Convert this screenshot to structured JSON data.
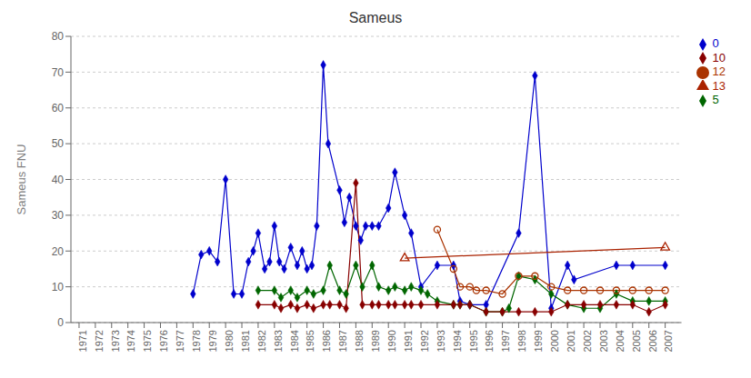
{
  "chart_data": {
    "type": "line",
    "title": "Sameus",
    "ylabel": "Sameus FNU",
    "xlim": [
      1970.5,
      2008.0
    ],
    "xticks": [
      1971,
      1972,
      1973,
      1974,
      1975,
      1976,
      1977,
      1978,
      1979,
      1980,
      1981,
      1982,
      1983,
      1984,
      1985,
      1986,
      1987,
      1988,
      1989,
      1990,
      1991,
      1992,
      1993,
      1994,
      1995,
      1996,
      1997,
      1998,
      1999,
      2000,
      2001,
      2002,
      2003,
      2004,
      2005,
      2006,
      2007
    ],
    "ylim": [
      0,
      80
    ],
    "yticks": [
      0,
      10,
      20,
      30,
      40,
      50,
      60,
      70,
      80
    ],
    "grid": "y",
    "legend": "right",
    "series": [
      {
        "name": "0",
        "color": "#0000cc",
        "marker": "diamond",
        "x": [
          1978,
          1978.5,
          1979,
          1979.5,
          1980,
          1980.5,
          1981,
          1981.4,
          1981.7,
          1982,
          1982.4,
          1982.7,
          1983,
          1983.3,
          1983.6,
          1984,
          1984.4,
          1984.7,
          1985,
          1985.3,
          1985.6,
          1986,
          1986.3,
          1987,
          1987.3,
          1987.6,
          1988,
          1988.3,
          1988.6,
          1989,
          1989.4,
          1990,
          1990.4,
          1991,
          1991.4,
          1992,
          1993,
          1994,
          1994.4,
          1995,
          1996,
          1998,
          1999,
          2000,
          2001,
          2001.4,
          2004,
          2005,
          2007
        ],
        "values": [
          8,
          19,
          20,
          17,
          40,
          8,
          8,
          17,
          20,
          25,
          15,
          17,
          27,
          17,
          15,
          21,
          16,
          20,
          15,
          16,
          27,
          72,
          50,
          37,
          28,
          35,
          27,
          23,
          27,
          27,
          27,
          32,
          42,
          30,
          25,
          10,
          16,
          16,
          6,
          5,
          5,
          25,
          69,
          4,
          16,
          12,
          16,
          16,
          16
        ]
      },
      {
        "name": "5",
        "color": "#006600",
        "marker": "diamond",
        "x": [
          1982,
          1983,
          1983.4,
          1984,
          1984.4,
          1985,
          1985.4,
          1986,
          1986.4,
          1987,
          1987.4,
          1988,
          1988.4,
          1989,
          1989.4,
          1990,
          1990.4,
          1991,
          1991.4,
          1992,
          1992.4,
          1993,
          1994,
          1994.4,
          1995,
          1996,
          1997,
          1997.4,
          1998,
          1999,
          2000,
          2001,
          2002,
          2003,
          2004,
          2005,
          2006,
          2007
        ],
        "values": [
          9,
          9,
          7,
          9,
          7,
          9,
          8,
          9,
          16,
          9,
          8,
          16,
          10,
          16,
          10,
          9,
          10,
          9,
          10,
          9,
          8,
          6,
          5,
          5,
          5,
          3,
          3,
          4,
          13,
          12,
          8,
          5,
          4,
          4,
          8,
          6,
          6,
          6
        ]
      },
      {
        "name": "10",
        "color": "#880000",
        "marker": "diamond",
        "x": [
          1982,
          1983,
          1983.4,
          1984,
          1984.4,
          1985,
          1985.4,
          1986,
          1986.4,
          1987,
          1987.4,
          1988,
          1988.4,
          1989,
          1989.4,
          1990,
          1990.4,
          1991,
          1991.4,
          1992,
          1993,
          1994,
          1994.4,
          1995,
          1996,
          1997,
          1998,
          1999,
          2000,
          2001,
          2002,
          2003,
          2004,
          2005,
          2006,
          2007
        ],
        "values": [
          5,
          5,
          4,
          5,
          4,
          5,
          4,
          5,
          5,
          5,
          4,
          39,
          5,
          5,
          5,
          5,
          5,
          5,
          5,
          5,
          5,
          5,
          5,
          5,
          3,
          3,
          3,
          3,
          3,
          5,
          5,
          5,
          5,
          5,
          3,
          5
        ]
      },
      {
        "name": "12",
        "color": "#aa3300",
        "marker": "circle-open",
        "x": [
          1993,
          1994,
          1994.4,
          1995,
          1995.4,
          1996,
          1997,
          1998,
          1999,
          2000,
          2001,
          2002,
          2003,
          2004,
          2005,
          2006,
          2007
        ],
        "values": [
          26,
          15,
          10,
          10,
          9,
          9,
          8,
          13,
          13,
          10,
          9,
          9,
          9,
          9,
          9,
          9,
          9
        ]
      },
      {
        "name": "13",
        "color": "#aa2200",
        "marker": "triangle-open",
        "x": [
          1991,
          2007
        ],
        "values": [
          18,
          21
        ]
      }
    ]
  }
}
